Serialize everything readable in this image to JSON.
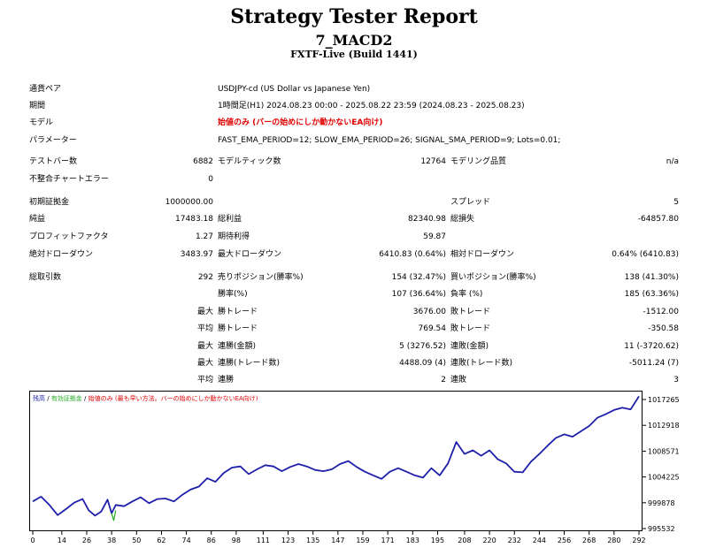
{
  "header": {
    "title": "Strategy Tester Report",
    "ea_name": "7_MACD2",
    "broker": "FXTF-Live (Build 1441)"
  },
  "settings": {
    "pair_label": "通貨ペア",
    "pair_value": "USDJPY-cd (US Dollar vs Japanese Yen)",
    "period_label": "期間",
    "period_value": "1時間足(H1) 2024.08.23 00:00 - 2025.08.22 23:59 (2024.08.23 - 2025.08.23)",
    "model_label": "モデル",
    "model_value": "始値のみ (バーの始めにしか動かないEA向け)",
    "params_label": "パラメーター",
    "params_value": "FAST_EMA_PERIOD=12; SLOW_EMA_PERIOD=26; SIGNAL_SMA_PERIOD=9; Lots=0.01;"
  },
  "stats": {
    "bars_label": "テストバー数",
    "bars": "6882",
    "ticks_label": "モデルティック数",
    "ticks": "12764",
    "quality_label": "モデリング品質",
    "quality": "n/a",
    "mismatch_label": "不整合チャートエラー",
    "mismatch": "0",
    "deposit_label": "初期証拠金",
    "deposit": "1000000.00",
    "spread_label": "スプレッド",
    "spread": "5",
    "net_label": "純益",
    "net": "17483.18",
    "gross_profit_label": "総利益",
    "gross_profit": "82340.98",
    "gross_loss_label": "総損失",
    "gross_loss": "-64857.80",
    "pf_label": "プロフィットファクタ",
    "pf": "1.27",
    "expected_label": "期待利得",
    "expected": "59.87",
    "abs_dd_label": "絶対ドローダウン",
    "abs_dd": "3483.97",
    "max_dd_label": "最大ドローダウン",
    "max_dd": "6410.83 (0.64%)",
    "rel_dd_label": "相対ドローダウン",
    "rel_dd": "0.64% (6410.83)",
    "trades_label": "総取引数",
    "trades": "292",
    "short_label": "売りポジション(勝率%)",
    "short": "154 (32.47%)",
    "long_label": "買いポジション(勝率%)",
    "long": "138 (41.30%)",
    "win_label": "勝率(%)",
    "win": "107 (36.64%)",
    "loss_label": "負率 (%)",
    "loss": "185 (63.36%)",
    "max_label": "最大",
    "avg_label": "平均",
    "win_trade_label": "勝トレード",
    "lose_trade_label": "敗トレード",
    "max_win": "3676.00",
    "max_loss": "-1512.00",
    "avg_win": "769.54",
    "avg_loss": "-350.58",
    "consec_win_amt_label": "連勝(金額)",
    "consec_win_amt": "5 (3276.52)",
    "consec_loss_amt_label": "連敗(金額)",
    "consec_loss_amt": "11 (-3720.62)",
    "consec_win_cnt_label": "連勝(トレード数)",
    "consec_win_cnt": "4488.09 (4)",
    "consec_loss_cnt_label": "連敗(トレード数)",
    "consec_loss_cnt": "-5011.24 (7)",
    "avg_consec_win_label": "連勝",
    "avg_consec_win": "2",
    "avg_consec_loss_label": "連敗",
    "avg_consec_loss": "3"
  },
  "legend": {
    "balance": "残高",
    "sep1": " / ",
    "equity": "有効証拠金",
    "sep2": " / ",
    "model_note": "始値のみ (最も早い方法。バーの始めにしか動かないEA向け)",
    "balance_color": "#1f1faa",
    "equity_color": "#22aa22",
    "note_color": "#e00000"
  },
  "chart_data": {
    "type": "line",
    "xlabel": "",
    "ylabel": "",
    "x_ticks": [
      0,
      14,
      26,
      38,
      50,
      62,
      74,
      86,
      98,
      111,
      123,
      135,
      147,
      159,
      171,
      183,
      195,
      208,
      220,
      232,
      244,
      256,
      268,
      280,
      292
    ],
    "y_ticks": [
      995532,
      999878,
      1004225,
      1008571,
      1012918,
      1017265
    ],
    "xlim": [
      0,
      292
    ],
    "ylim": [
      995532,
      1017265
    ],
    "series": [
      {
        "name": "残高",
        "color": "#1f1faa",
        "x": [
          0,
          4,
          8,
          12,
          16,
          20,
          24,
          27,
          30,
          33,
          36,
          38,
          40,
          44,
          48,
          52,
          56,
          60,
          64,
          68,
          72,
          76,
          80,
          84,
          88,
          92,
          96,
          100,
          104,
          108,
          112,
          116,
          120,
          124,
          128,
          132,
          136,
          140,
          144,
          148,
          152,
          156,
          160,
          164,
          168,
          172,
          176,
          180,
          184,
          188,
          192,
          196,
          200,
          204,
          208,
          212,
          216,
          220,
          224,
          228,
          232,
          236,
          240,
          244,
          248,
          252,
          256,
          260,
          264,
          268,
          272,
          276,
          280,
          284,
          288,
          292
        ],
        "y": [
          1000100,
          1000900,
          999500,
          997800,
          998800,
          999900,
          1000500,
          998600,
          997700,
          998400,
          1000400,
          998100,
          999500,
          999300,
          1000100,
          1000800,
          999800,
          1000500,
          1000600,
          1000100,
          1001200,
          1002100,
          1002600,
          1004000,
          1003400,
          1004900,
          1005800,
          1006000,
          1004700,
          1005500,
          1006200,
          1006000,
          1005200,
          1005900,
          1006400,
          1006000,
          1005400,
          1005200,
          1005500,
          1006400,
          1006900,
          1005900,
          1005100,
          1004500,
          1003900,
          1005100,
          1005700,
          1005100,
          1004500,
          1004100,
          1005700,
          1004500,
          1006500,
          1010100,
          1008100,
          1008700,
          1007800,
          1008700,
          1007200,
          1006500,
          1005100,
          1005000,
          1006800,
          1008100,
          1009500,
          1010800,
          1011400,
          1011000,
          1011900,
          1012800,
          1014200,
          1014800,
          1015500,
          1015900,
          1015600,
          1017800
        ]
      },
      {
        "name": "有効証拠金",
        "color": "#22aa22",
        "x": [
          38,
          39,
          40
        ],
        "y": [
          998100,
          996900,
          998600
        ]
      }
    ]
  }
}
